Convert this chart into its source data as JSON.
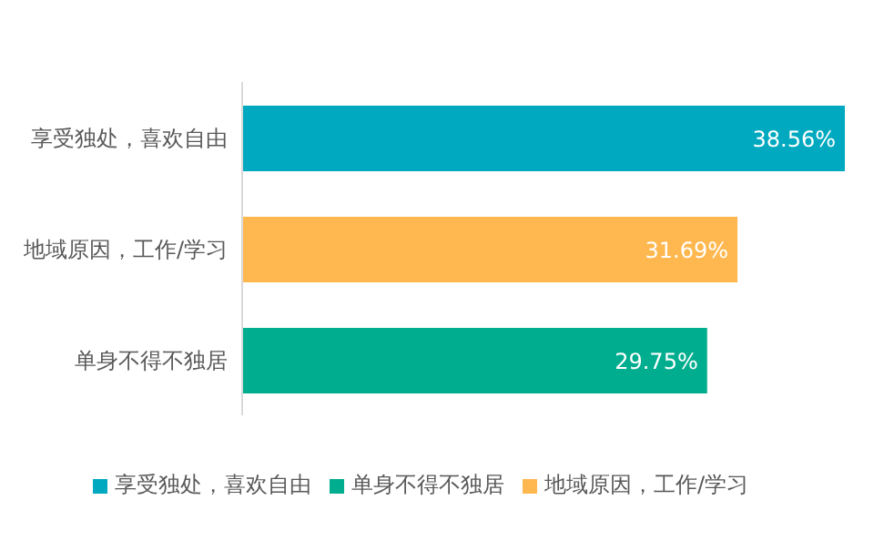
{
  "chart_data": {
    "type": "bar",
    "orientation": "horizontal",
    "stacked": true,
    "categories": [
      "享受独处，喜欢自由",
      "地域原因，工作/学习",
      "单身不得不独居"
    ],
    "series": [
      {
        "name": "单身不得不独居",
        "color": "#00ad8e",
        "values": [
          null,
          null,
          29.75
        ],
        "value_labels": [
          null,
          null,
          "29.75%"
        ]
      },
      {
        "name": "地域原因，工作/学习",
        "color": "#ffb74f",
        "values": [
          null,
          31.69,
          null
        ],
        "value_labels": [
          null,
          "31.69%",
          null
        ]
      },
      {
        "name": "享受独处，喜欢自由",
        "color": "#00a9bf",
        "values": [
          38.56,
          null,
          null
        ],
        "value_labels": [
          "38.56%",
          null,
          null
        ]
      }
    ],
    "legend": "bottom",
    "grid": false
  }
}
